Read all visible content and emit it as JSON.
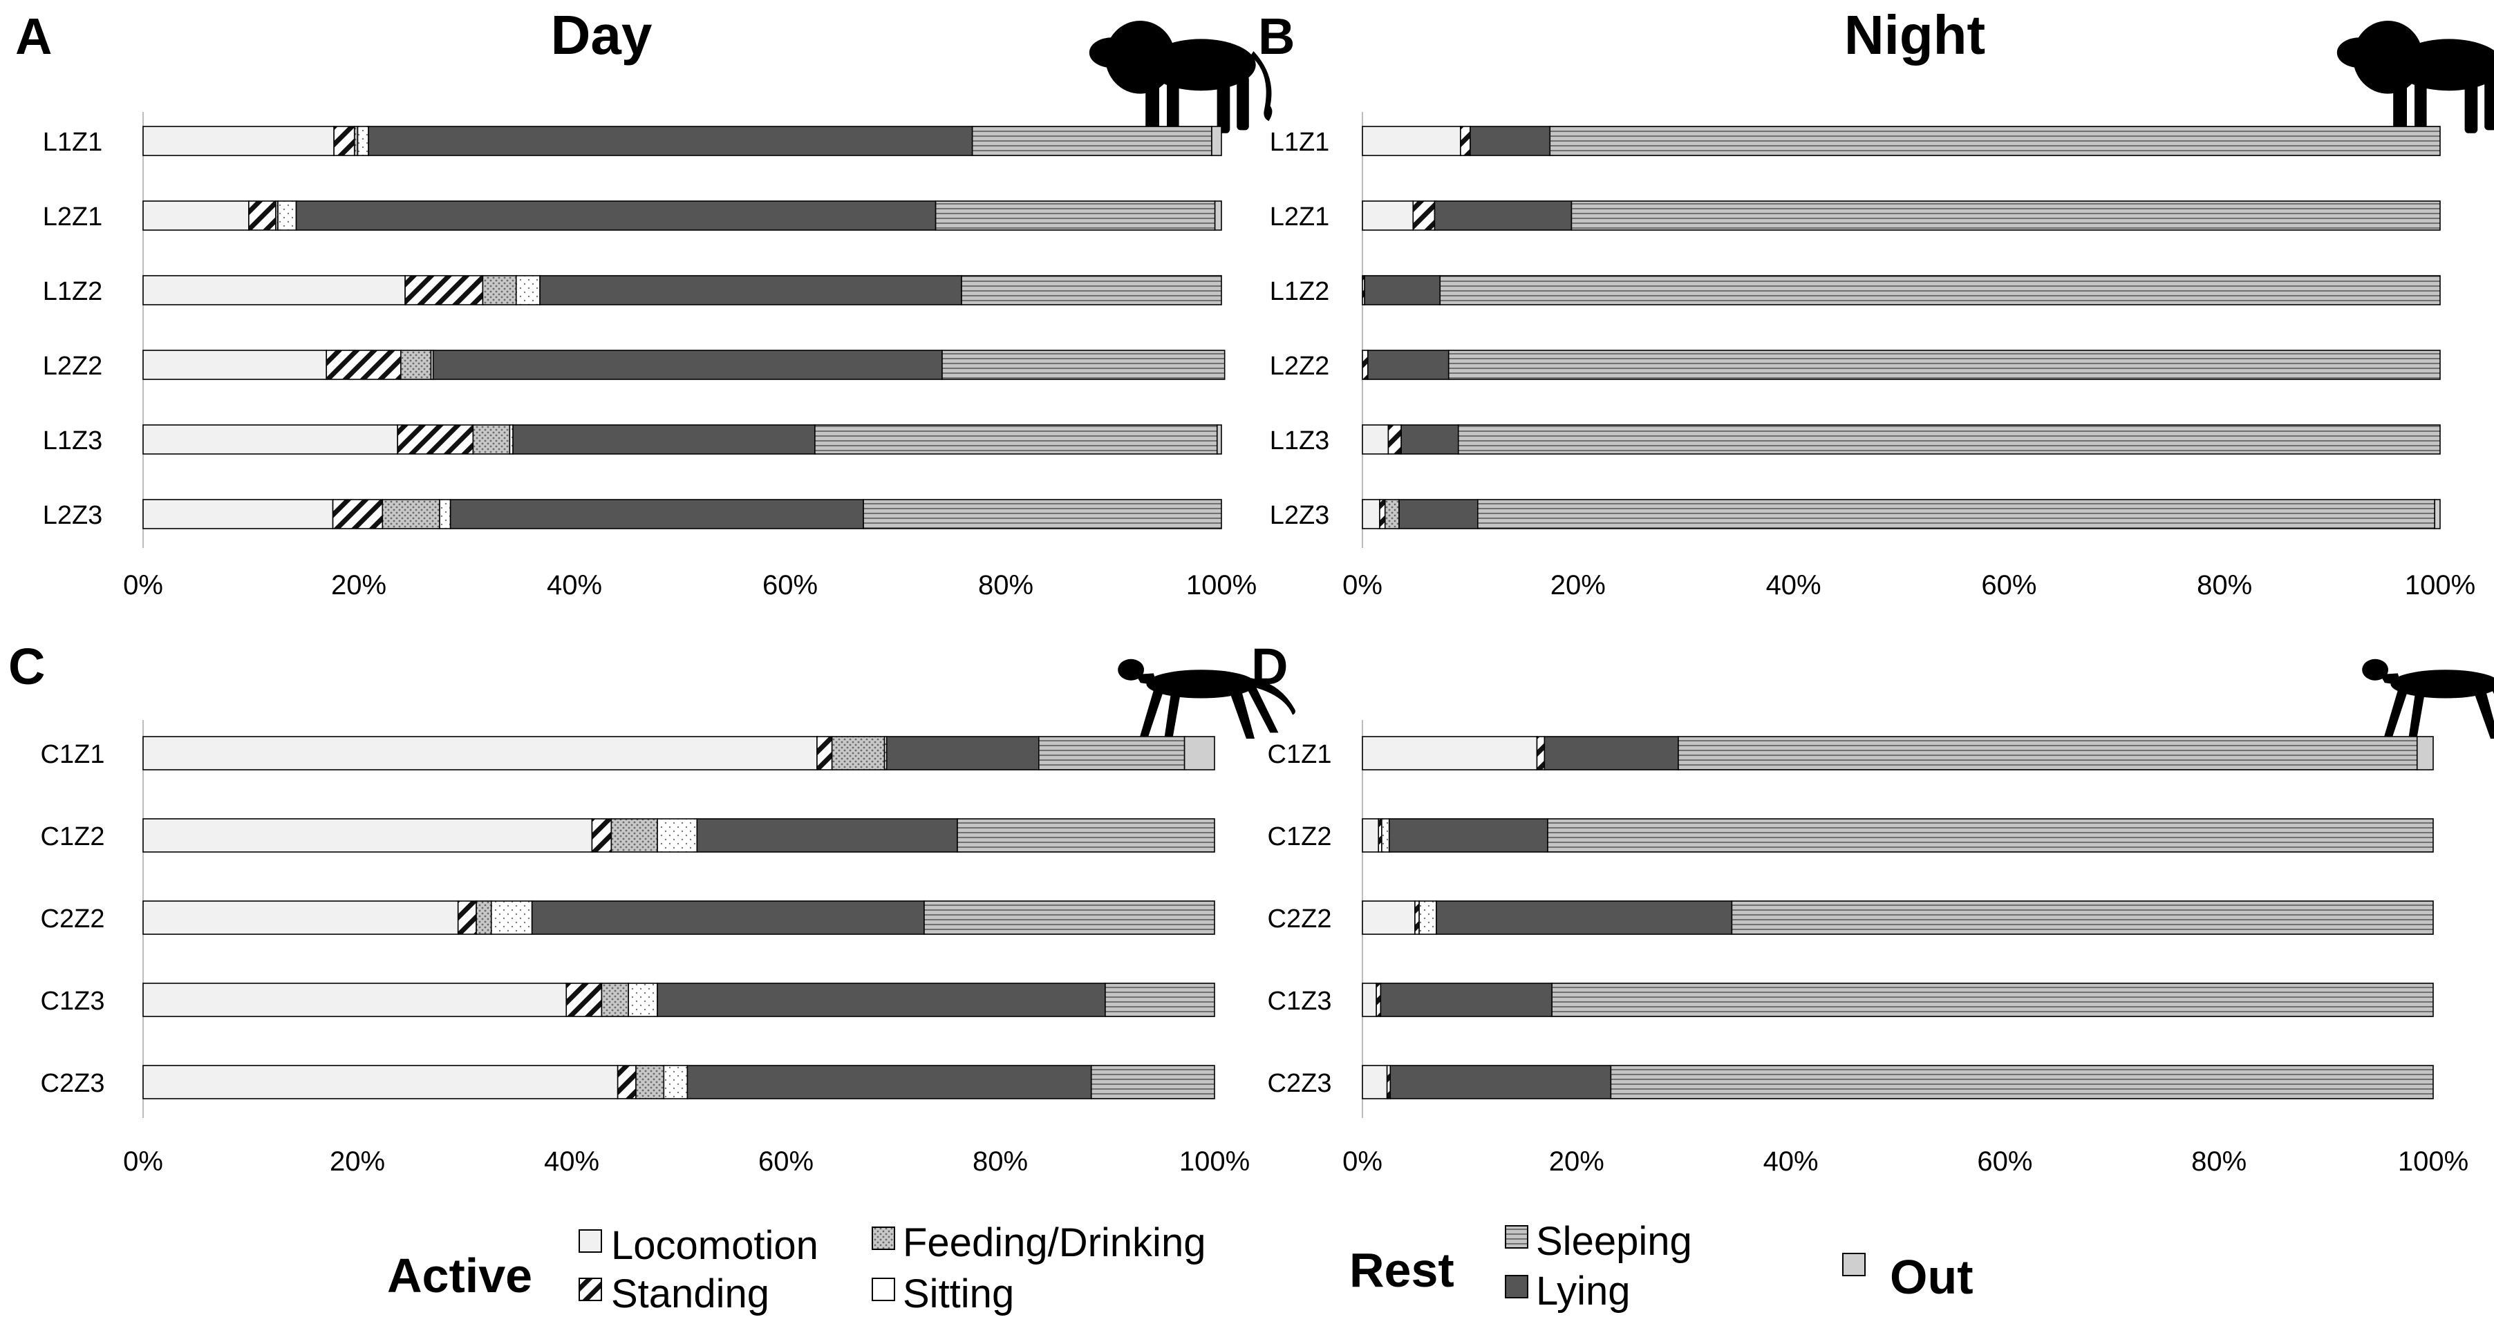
{
  "chart_data": [
    {
      "panel": "A",
      "title": "Day",
      "type": "stacked-bar-horizontal",
      "animal": "lion",
      "categories": [
        "L1Z1",
        "L2Z1",
        "L1Z2",
        "L2Z2",
        "L1Z3",
        "L2Z3"
      ],
      "xlim": [
        0,
        100
      ],
      "xticks": [
        "0%",
        "20%",
        "40%",
        "60%",
        "80%",
        "100%"
      ],
      "series": [
        {
          "name": "Locomotion",
          "values": [
            17.7,
            9.8,
            24.3,
            17.0,
            23.6,
            17.6
          ]
        },
        {
          "name": "Standing",
          "values": [
            1.9,
            2.5,
            7.2,
            6.9,
            7.0,
            4.6
          ]
        },
        {
          "name": "Feeding/Drinking",
          "values": [
            0.3,
            0.2,
            3.1,
            2.8,
            3.4,
            5.3
          ]
        },
        {
          "name": "Sitting",
          "values": [
            1.0,
            1.7,
            2.2,
            0.2,
            0.3,
            1.0
          ]
        },
        {
          "name": "Lying",
          "values": [
            56.0,
            59.3,
            39.1,
            47.2,
            28.0,
            38.3
          ]
        },
        {
          "name": "Sleeping",
          "values": [
            22.2,
            25.9,
            24.1,
            26.2,
            37.3,
            33.2
          ]
        },
        {
          "name": "Out",
          "values": [
            0.9,
            0.6,
            0.0,
            0.0,
            0.4,
            0.0
          ]
        }
      ]
    },
    {
      "panel": "B",
      "title": "Night",
      "type": "stacked-bar-horizontal",
      "animal": "lion",
      "categories": [
        "L1Z1",
        "L2Z1",
        "L1Z2",
        "L2Z2",
        "L1Z3",
        "L2Z3"
      ],
      "xlim": [
        0,
        100
      ],
      "xticks": [
        "0%",
        "20%",
        "40%",
        "60%",
        "80%",
        "100%"
      ],
      "series": [
        {
          "name": "Locomotion",
          "values": [
            9.1,
            4.7,
            0.0,
            0.0,
            2.4,
            1.6
          ]
        },
        {
          "name": "Standing",
          "values": [
            0.9,
            2.0,
            0.2,
            0.5,
            1.2,
            0.5
          ]
        },
        {
          "name": "Feeding/Drinking",
          "values": [
            0.0,
            0.0,
            0.0,
            0.0,
            0.0,
            1.3
          ]
        },
        {
          "name": "Sitting",
          "values": [
            0.0,
            0.0,
            0.0,
            0.0,
            0.0,
            0.0
          ]
        },
        {
          "name": "Lying",
          "values": [
            7.4,
            12.7,
            7.0,
            7.5,
            5.3,
            7.3
          ]
        },
        {
          "name": "Sleeping",
          "values": [
            82.6,
            80.6,
            92.8,
            92.0,
            91.1,
            88.8
          ]
        },
        {
          "name": "Out",
          "values": [
            0.0,
            0.0,
            0.0,
            0.0,
            0.0,
            0.5
          ]
        }
      ]
    },
    {
      "panel": "C",
      "title": "",
      "type": "stacked-bar-horizontal",
      "animal": "cheetah",
      "categories": [
        "C1Z1",
        "C1Z2",
        "C2Z2",
        "C1Z3",
        "C2Z3"
      ],
      "xlim": [
        0,
        100
      ],
      "xticks": [
        "0%",
        "20%",
        "40%",
        "60%",
        "80%",
        "100%"
      ],
      "series": [
        {
          "name": "Locomotion",
          "values": [
            62.9,
            41.9,
            29.4,
            39.5,
            44.3
          ]
        },
        {
          "name": "Standing",
          "values": [
            1.4,
            1.8,
            1.7,
            3.3,
            1.7
          ]
        },
        {
          "name": "Feeding/Drinking",
          "values": [
            4.9,
            4.3,
            1.4,
            2.5,
            2.6
          ]
        },
        {
          "name": "Sitting",
          "values": [
            0.2,
            3.7,
            3.8,
            2.7,
            2.2
          ]
        },
        {
          "name": "Lying",
          "values": [
            14.2,
            24.3,
            36.6,
            41.8,
            37.7
          ]
        },
        {
          "name": "Sleeping",
          "values": [
            13.6,
            24.0,
            27.1,
            10.2,
            11.5
          ]
        },
        {
          "name": "Out",
          "values": [
            2.8,
            0.0,
            0.0,
            0.0,
            0.0
          ]
        }
      ]
    },
    {
      "panel": "D",
      "title": "",
      "type": "stacked-bar-horizontal",
      "animal": "cheetah",
      "categories": [
        "C1Z1",
        "C1Z2",
        "C2Z2",
        "C1Z3",
        "C2Z3"
      ],
      "xlim": [
        0,
        100
      ],
      "xticks": [
        "0%",
        "20%",
        "40%",
        "60%",
        "80%",
        "100%"
      ],
      "series": [
        {
          "name": "Locomotion",
          "values": [
            16.3,
            1.5,
            4.9,
            1.3,
            2.3
          ]
        },
        {
          "name": "Standing",
          "values": [
            0.7,
            0.3,
            0.4,
            0.4,
            0.3
          ]
        },
        {
          "name": "Feeding/Drinking",
          "values": [
            0.0,
            0.0,
            0.0,
            0.0,
            0.0
          ]
        },
        {
          "name": "Sitting",
          "values": [
            0.0,
            0.7,
            1.6,
            0.0,
            0.0
          ]
        },
        {
          "name": "Lying",
          "values": [
            12.5,
            14.8,
            27.6,
            16.0,
            20.6
          ]
        },
        {
          "name": "Sleeping",
          "values": [
            69.0,
            82.7,
            65.5,
            82.3,
            76.8
          ]
        },
        {
          "name": "Out",
          "values": [
            1.5,
            0.0,
            0.0,
            0.0,
            0.0
          ]
        }
      ]
    }
  ],
  "legend": {
    "active_label": "Active",
    "rest_label": "Rest",
    "items": [
      {
        "key": "Locomotion",
        "label": "Locomotion"
      },
      {
        "key": "Feeding/Drinking",
        "label": "Feeding/Drinking"
      },
      {
        "key": "Standing",
        "label": "Standing"
      },
      {
        "key": "Sitting",
        "label": "Sitting"
      },
      {
        "key": "Sleeping",
        "label": "Sleeping"
      },
      {
        "key": "Lying",
        "label": "Lying"
      },
      {
        "key": "Out",
        "label": "Out"
      }
    ]
  }
}
